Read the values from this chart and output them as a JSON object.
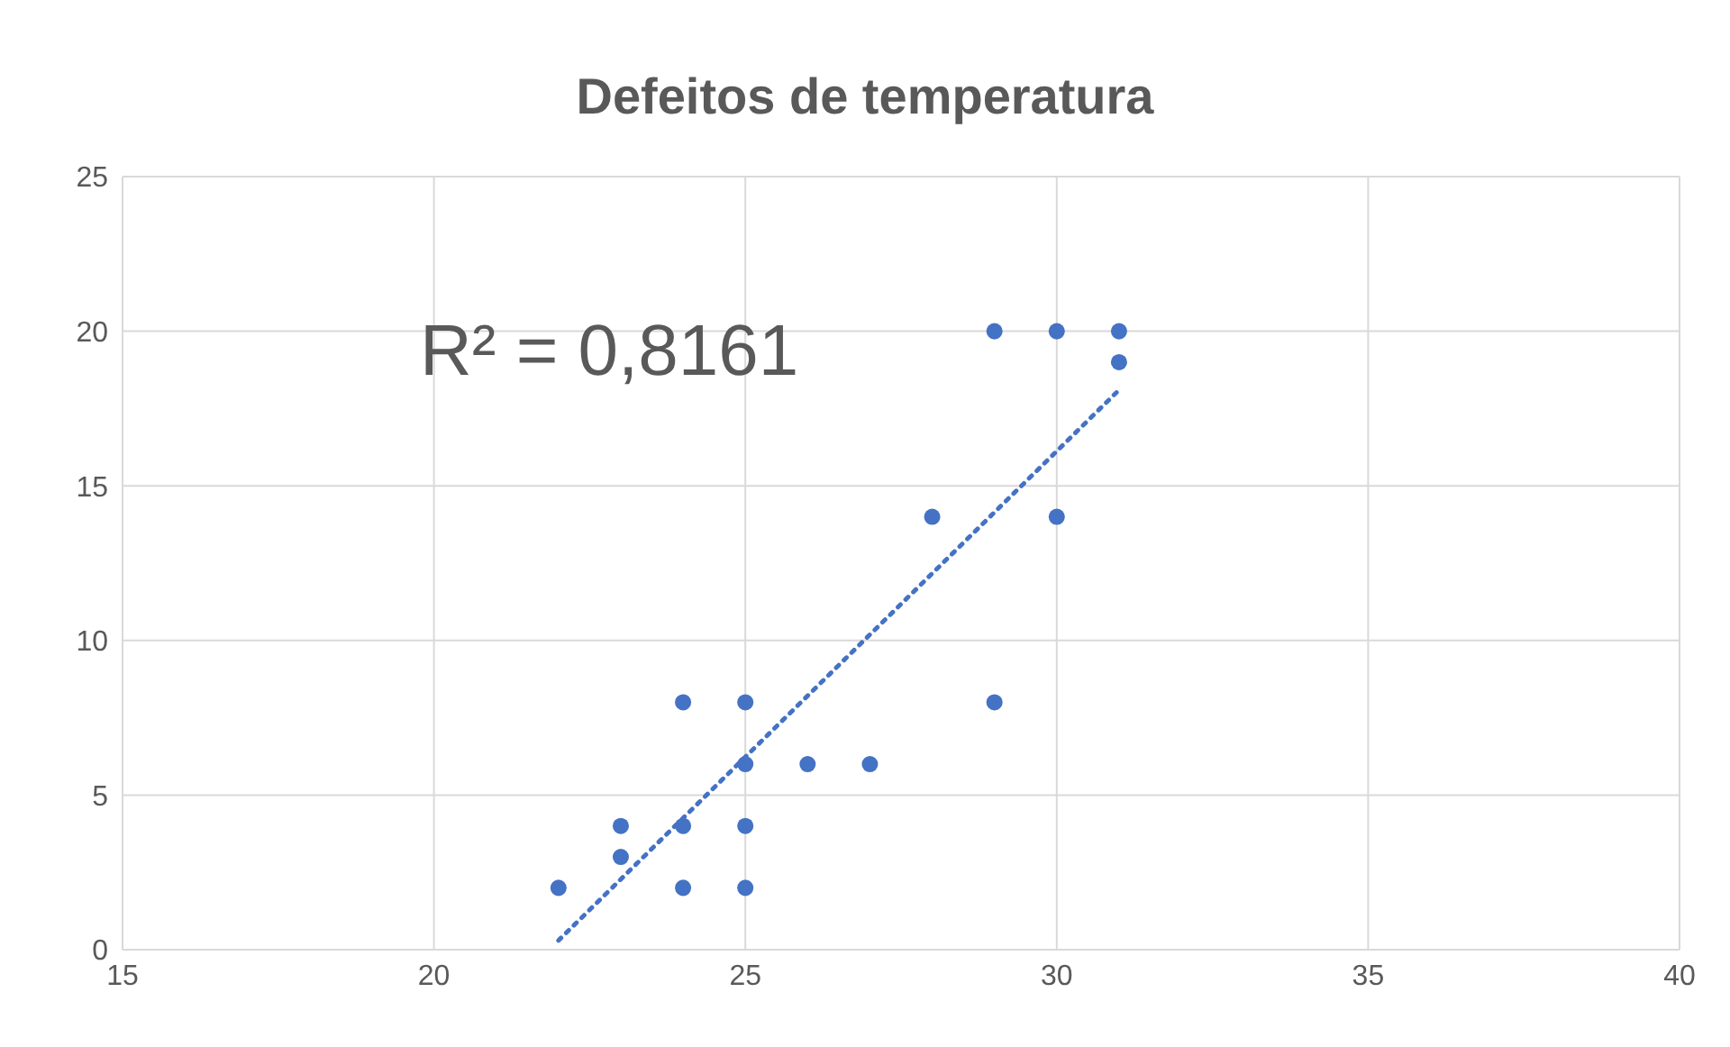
{
  "chart_data": {
    "type": "scatter",
    "title": "Defeitos de temperatura",
    "xlim": [
      15,
      40
    ],
    "xticks": [
      15,
      20,
      25,
      30,
      35,
      40
    ],
    "ylim": [
      0,
      25
    ],
    "yticks": [
      0,
      5,
      10,
      15,
      20,
      25
    ],
    "grid": true,
    "marker": "circle",
    "annotations": [
      "R² = 0,8161"
    ],
    "series": [
      {
        "color": "#4472c4",
        "x": [
          22,
          23,
          23,
          24,
          24,
          24,
          25,
          25,
          25,
          25,
          26,
          27,
          28,
          29,
          29,
          30,
          30,
          31,
          31
        ],
        "values": [
          2,
          4,
          3,
          8,
          4,
          2,
          8,
          6,
          4,
          2,
          6,
          6,
          14,
          20,
          8,
          20,
          14,
          20,
          19
        ]
      },
      {
        "type": "line",
        "marker": "none",
        "color": "#4472c4",
        "line_style": "dotted",
        "x": [
          22,
          31
        ],
        "values": [
          0.3,
          18.1
        ]
      }
    ]
  }
}
